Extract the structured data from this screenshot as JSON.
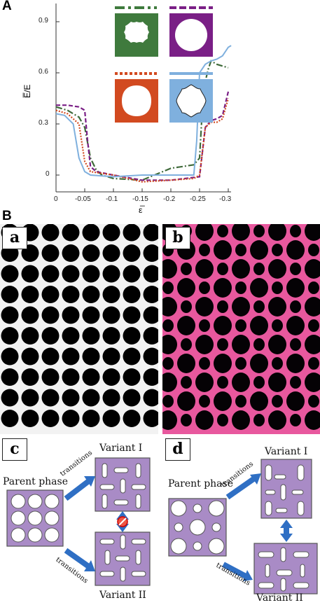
{
  "panel_A": {
    "label": "A",
    "y_axis_label": "E̅/E",
    "x_axis_label": "ε̅",
    "y_ticks": [
      "0.9",
      "0.6",
      "0.3",
      "0"
    ],
    "x_ticks": [
      "0",
      "-0.05",
      "-0.1",
      "-0.15",
      "-0.2",
      "-0.25",
      "-0.3"
    ],
    "inset_colors": {
      "green": "#3f7a3d",
      "purple": "#7a1f86",
      "orange": "#d24a20",
      "blue": "#7fb0de"
    },
    "chart_data": {
      "type": "line",
      "xlim": [
        0,
        -0.31
      ],
      "ylim": [
        -0.06,
        0.97
      ],
      "series": [
        {
          "color": "#3f6a3a",
          "style": "dash-dot",
          "x": [
            0,
            -0.02,
            -0.04,
            -0.05,
            -0.06,
            -0.07,
            -0.08,
            -0.09,
            -0.1,
            -0.15,
            -0.2,
            -0.24,
            -0.25,
            -0.255,
            -0.26,
            -0.265,
            -0.27,
            -0.28,
            -0.29,
            -0.3
          ],
          "y": [
            0.4,
            0.38,
            0.34,
            0.28,
            0.1,
            0.03,
            0.0,
            -0.01,
            -0.02,
            -0.03,
            0.04,
            0.06,
            0.1,
            0.4,
            0.55,
            0.62,
            0.67,
            0.65,
            0.64,
            0.63
          ]
        },
        {
          "color": "#7a1f86",
          "style": "dashed",
          "x": [
            0,
            -0.02,
            -0.04,
            -0.05,
            -0.055,
            -0.06,
            -0.07,
            -0.1,
            -0.15,
            -0.2,
            -0.25,
            -0.26,
            -0.27,
            -0.28,
            -0.29,
            -0.3
          ],
          "y": [
            0.41,
            0.41,
            0.4,
            0.38,
            0.2,
            0.05,
            0.02,
            0.0,
            -0.03,
            -0.03,
            -0.01,
            0.28,
            0.32,
            0.33,
            0.35,
            0.49
          ]
        },
        {
          "color": "#d24a20",
          "style": "dotted",
          "x": [
            0,
            -0.02,
            -0.04,
            -0.05,
            -0.06,
            -0.1,
            -0.15,
            -0.2,
            -0.24,
            -0.25,
            -0.26,
            -0.27,
            -0.28,
            -0.29,
            -0.3
          ],
          "y": [
            0.38,
            0.36,
            0.3,
            0.08,
            0.02,
            0.0,
            -0.04,
            -0.03,
            -0.02,
            0.0,
            0.28,
            0.31,
            0.31,
            0.33,
            0.45
          ]
        },
        {
          "color": "#7fb0de",
          "style": "solid",
          "x": [
            0,
            -0.015,
            -0.03,
            -0.04,
            -0.05,
            -0.06,
            -0.1,
            -0.15,
            -0.2,
            -0.24,
            -0.245,
            -0.25,
            -0.26,
            -0.27,
            -0.28,
            -0.29,
            -0.3,
            -0.305
          ],
          "y": [
            0.36,
            0.35,
            0.3,
            0.1,
            0.02,
            0.0,
            -0.01,
            0.0,
            0.0,
            0.0,
            0.2,
            0.6,
            0.65,
            0.67,
            0.68,
            0.7,
            0.75,
            0.76
          ]
        }
      ]
    }
  },
  "panel_B": {
    "label": "B",
    "photo_a_label": "a",
    "photo_b_label": "b",
    "pink": "#e8589e",
    "diagram_c_label": "c",
    "diagram_d_label": "d",
    "parent_phase": "Parent phase",
    "variant_1": "Variant I",
    "variant_2": "Variant II",
    "transitions": "transitions",
    "box_color": "#a98bc6",
    "arrow_color": "#2f6fc4"
  }
}
